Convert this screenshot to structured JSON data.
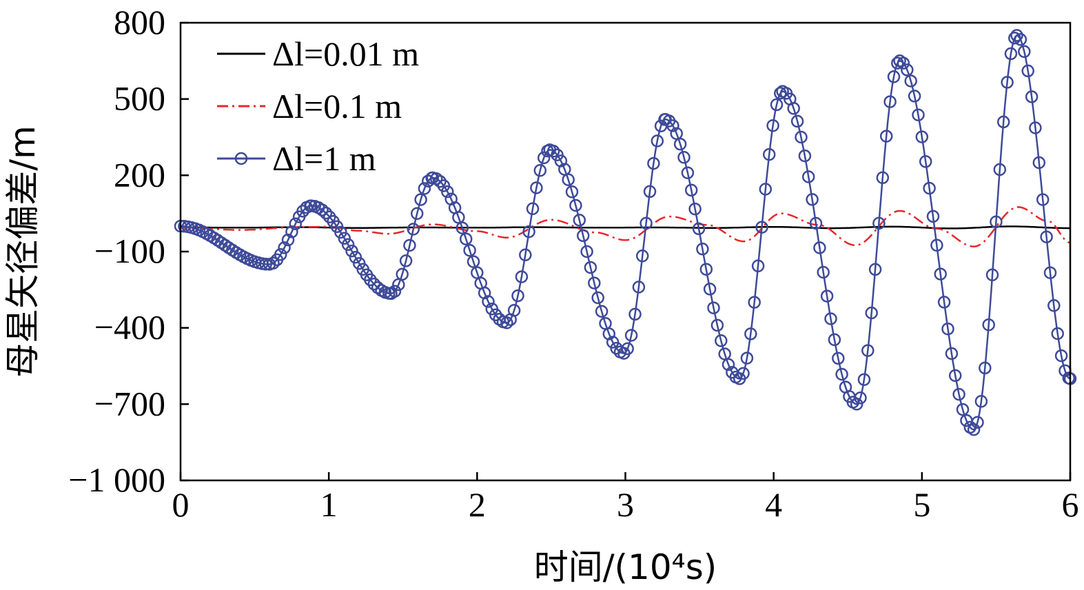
{
  "chart_data": {
    "type": "line",
    "title": "",
    "xlabel": "时间/(10⁴s)",
    "ylabel": "母星矢径偏差/m",
    "xlim": [
      0,
      6
    ],
    "ylim": [
      -1000,
      800
    ],
    "xticks": [
      "0",
      "1",
      "2",
      "3",
      "4",
      "5",
      "6"
    ],
    "yticks": [
      "800",
      "500",
      "200",
      "−100",
      "−400",
      "−700",
      "−1 000"
    ],
    "grid": false,
    "legend_position": "top-left",
    "series": [
      {
        "name": "Δl=0.01 m",
        "color": "#000000",
        "style": "solid",
        "x": [
          0,
          0.4,
          0.8,
          1.2,
          1.6,
          2.0,
          2.4,
          2.8,
          3.2,
          3.6,
          4.0,
          4.4,
          4.8,
          5.2,
          5.6,
          6.0
        ],
        "y": [
          -5,
          -6,
          -4,
          -7,
          -5,
          -6,
          -4,
          -6,
          -5,
          -7,
          -3,
          -8,
          -2,
          -9,
          -1,
          -8
        ]
      },
      {
        "name": "Δl=0.1 m",
        "color": "#e8262b",
        "style": "dashdot",
        "x": [
          0,
          0.4,
          0.8,
          1.0,
          1.2,
          1.4,
          1.7,
          2.0,
          2.2,
          2.5,
          2.8,
          3.0,
          3.3,
          3.55,
          3.8,
          4.05,
          4.3,
          4.55,
          4.85,
          5.1,
          5.35,
          5.65,
          5.85,
          6.0
        ],
        "y": [
          -5,
          -15,
          -4,
          -2,
          -18,
          -30,
          7,
          -20,
          -45,
          25,
          -25,
          -55,
          38,
          5,
          -60,
          50,
          5,
          -75,
          60,
          -10,
          -80,
          75,
          20,
          -65
        ]
      },
      {
        "name": "Δl=1 m",
        "color": "#3e4a99",
        "style": "solid-marker-circle",
        "x": [
          0,
          0.6,
          0.88,
          1.42,
          1.7,
          2.2,
          2.49,
          2.99,
          3.27,
          3.77,
          4.06,
          4.56,
          4.85,
          5.35,
          5.64,
          6.0
        ],
        "y": [
          0,
          -150,
          80,
          -265,
          190,
          -380,
          300,
          -500,
          420,
          -600,
          530,
          -700,
          650,
          -800,
          750,
          -600
        ]
      }
    ]
  }
}
